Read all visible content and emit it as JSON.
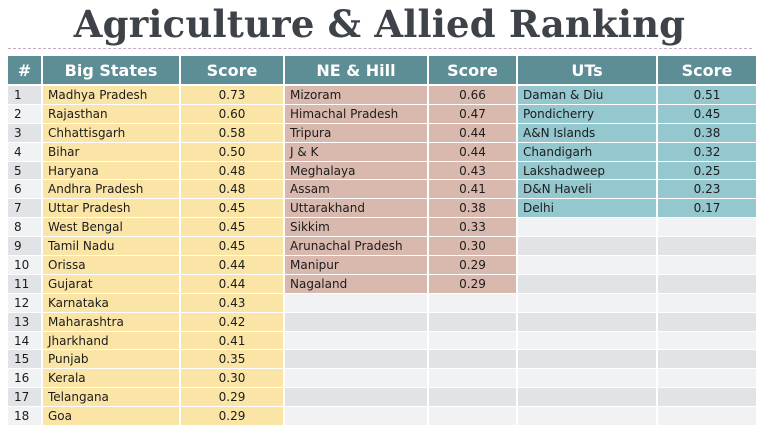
{
  "title": "Agriculture & Allied Ranking",
  "colors": {
    "header": "#5d8e96",
    "big_states": "#fbe5a6",
    "ne_hill": "#d9b9ae",
    "uts": "#95c7cf",
    "row_even": "#f1f2f4",
    "row_odd": "#e2e3e6"
  },
  "headers": {
    "rank": "#",
    "big_states": "Big States",
    "big_states_score": "Score",
    "ne_hill": "NE & Hill",
    "ne_hill_score": "Score",
    "uts": "UTs",
    "uts_score": "Score"
  },
  "ranks": [
    "1",
    "2",
    "3",
    "4",
    "5",
    "6",
    "7",
    "8",
    "9",
    "10",
    "11",
    "12",
    "13",
    "14",
    "15",
    "16",
    "17",
    "18"
  ],
  "big_states": [
    {
      "name": "Madhya Pradesh",
      "score": "0.73"
    },
    {
      "name": "Rajasthan",
      "score": "0.60"
    },
    {
      "name": "Chhattisgarh",
      "score": "0.58"
    },
    {
      "name": "Bihar",
      "score": "0.50"
    },
    {
      "name": "Haryana",
      "score": "0.48"
    },
    {
      "name": "Andhra Pradesh",
      "score": "0.48"
    },
    {
      "name": "Uttar Pradesh",
      "score": "0.45"
    },
    {
      "name": "West Bengal",
      "score": "0.45"
    },
    {
      "name": "Tamil Nadu",
      "score": "0.45"
    },
    {
      "name": "Orissa",
      "score": "0.44"
    },
    {
      "name": "Gujarat",
      "score": "0.44"
    },
    {
      "name": "Karnataka",
      "score": "0.43"
    },
    {
      "name": "Maharashtra",
      "score": "0.42"
    },
    {
      "name": "Jharkhand",
      "score": "0.41"
    },
    {
      "name": "Punjab",
      "score": "0.35"
    },
    {
      "name": "Kerala",
      "score": "0.30"
    },
    {
      "name": "Telangana",
      "score": "0.29"
    },
    {
      "name": "Goa",
      "score": "0.29"
    }
  ],
  "ne_hill": [
    {
      "name": "Mizoram",
      "score": "0.66"
    },
    {
      "name": "Himachal Pradesh",
      "score": "0.47"
    },
    {
      "name": "Tripura",
      "score": "0.44"
    },
    {
      "name": "J & K",
      "score": "0.44"
    },
    {
      "name": "Meghalaya",
      "score": "0.43"
    },
    {
      "name": "Assam",
      "score": "0.41"
    },
    {
      "name": "Uttarakhand",
      "score": "0.38"
    },
    {
      "name": "Sikkim",
      "score": "0.33"
    },
    {
      "name": "Arunachal Pradesh",
      "score": "0.30"
    },
    {
      "name": "Manipur",
      "score": "0.29"
    },
    {
      "name": "Nagaland",
      "score": "0.29"
    }
  ],
  "uts": [
    {
      "name": "Daman & Diu",
      "score": "0.51"
    },
    {
      "name": "Pondicherry",
      "score": "0.45"
    },
    {
      "name": "A&N Islands",
      "score": "0.38"
    },
    {
      "name": "Chandigarh",
      "score": "0.32"
    },
    {
      "name": "Lakshadweep",
      "score": "0.25"
    },
    {
      "name": "D&N Haveli",
      "score": "0.23"
    },
    {
      "name": "Delhi",
      "score": "0.17"
    }
  ]
}
